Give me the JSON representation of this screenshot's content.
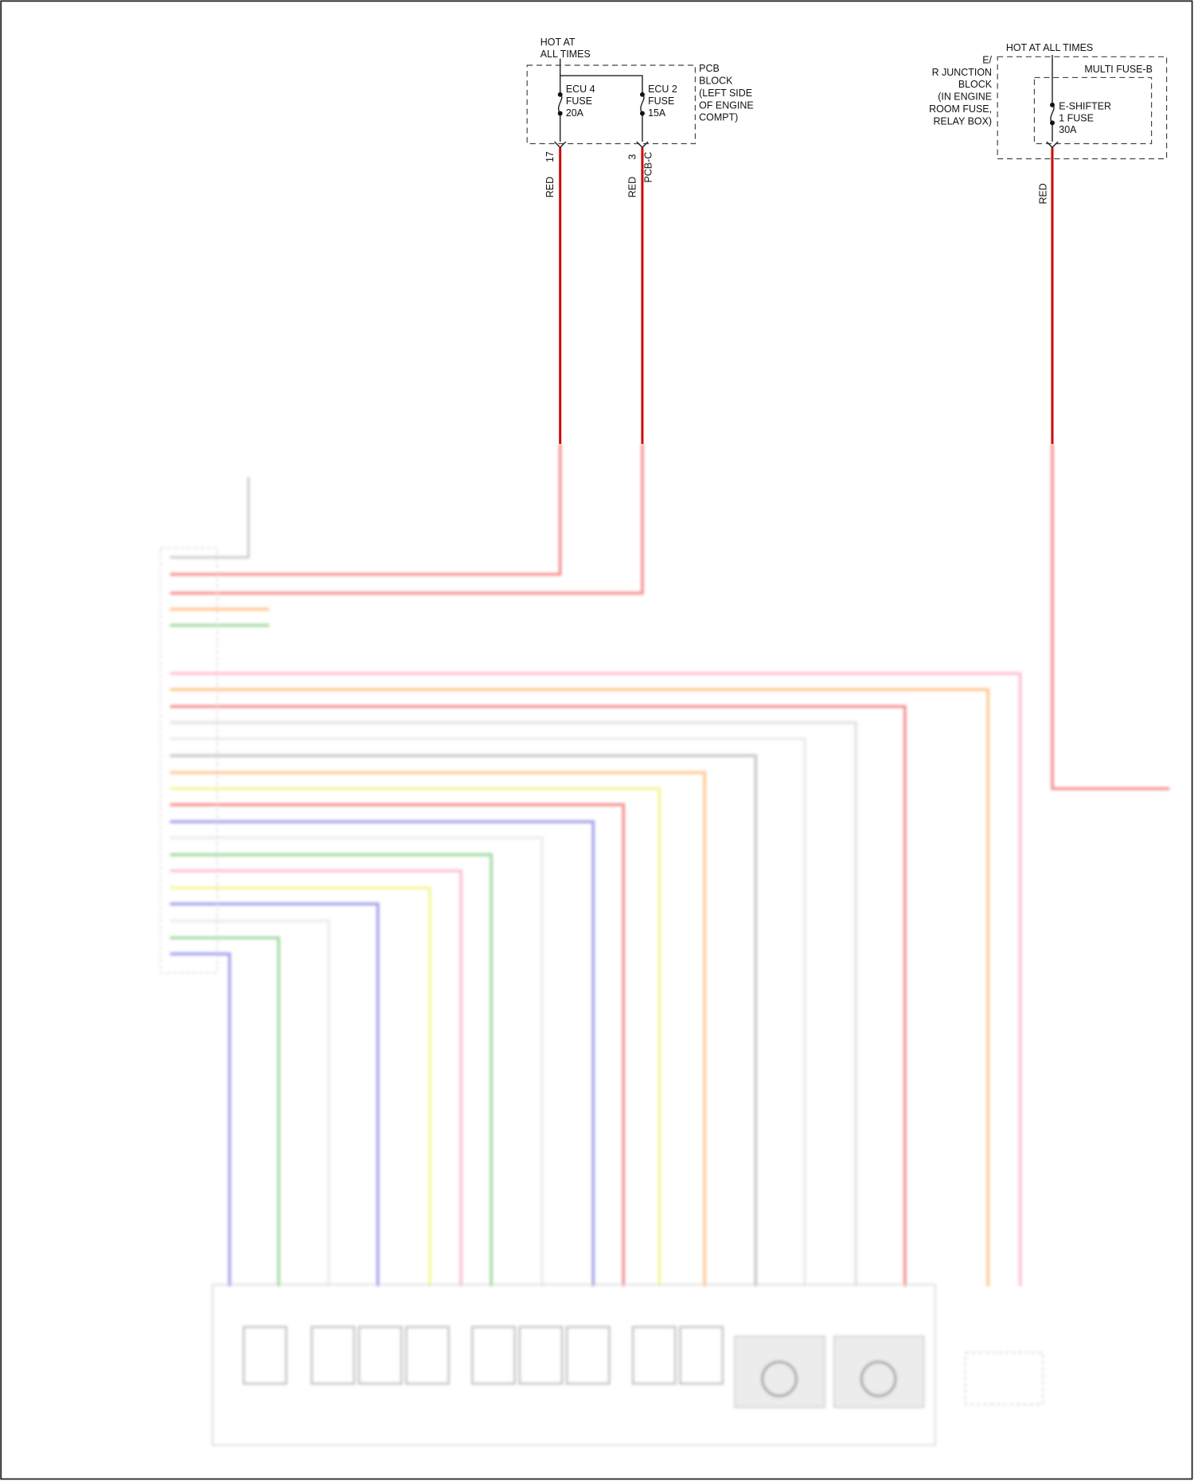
{
  "left_block": {
    "hot_label": [
      "HOT AT",
      "ALL TIMES"
    ],
    "fuses": [
      {
        "label": [
          "ECU 4",
          "FUSE",
          "20A"
        ],
        "pin": "17",
        "wire": "RED"
      },
      {
        "label": [
          "ECU 2",
          "FUSE",
          "15A"
        ],
        "pin": "3",
        "wire": "RED",
        "connector": "PCB-C"
      }
    ],
    "block_label": [
      "PCB",
      "BLOCK",
      "(LEFT SIDE",
      "OF ENGINE",
      "COMPT)"
    ]
  },
  "right_block": {
    "hot_label": "HOT AT ALL TIMES",
    "block_label": [
      "E/",
      "R JUNCTION",
      "BLOCK",
      "(IN ENGINE",
      "ROOM FUSE,",
      "RELAY BOX)"
    ],
    "inner_label": "MULTI FUSE-B",
    "fuse_label": [
      "E-SHIFTER",
      "1 FUSE",
      "30A"
    ],
    "wire": "RED"
  }
}
